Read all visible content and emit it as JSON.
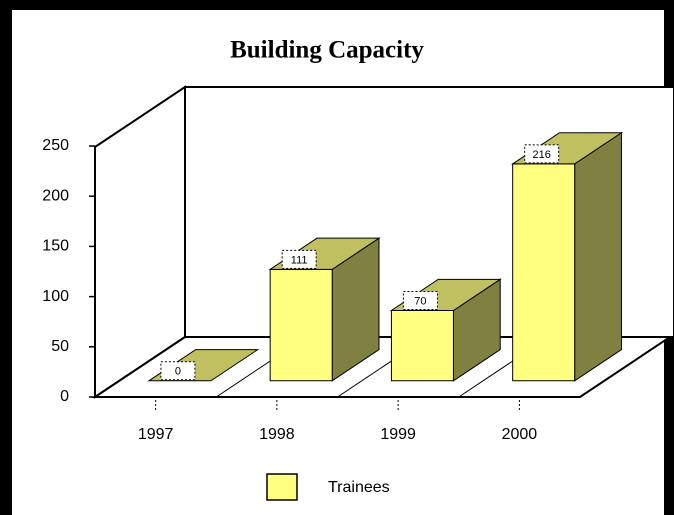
{
  "chart_data": {
    "type": "bar3d",
    "title": "Building Capacity",
    "categories": [
      "1997",
      "1998",
      "1999",
      "2000"
    ],
    "series": [
      {
        "name": "Trainees",
        "color": "#ffff80",
        "values": [
          0,
          111,
          70,
          216
        ]
      }
    ],
    "ylim": [
      0,
      250
    ],
    "yticks": [
      0,
      50,
      100,
      150,
      200,
      250
    ],
    "legend": "bottom"
  }
}
